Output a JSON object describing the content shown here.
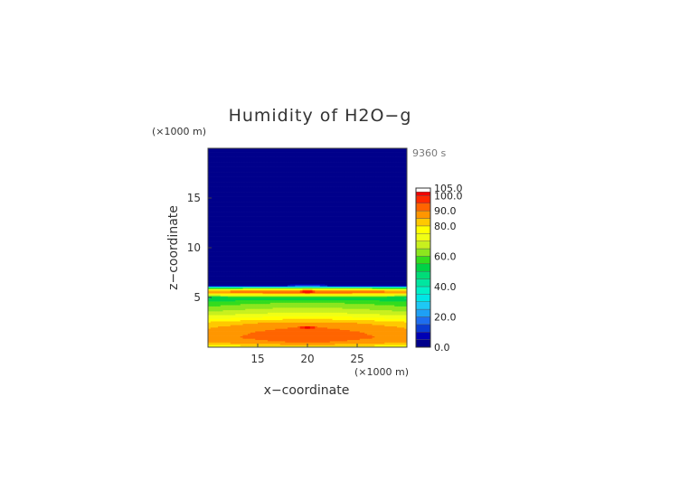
{
  "chart_data": {
    "type": "heatmap",
    "title": "Humidity of H2O−g",
    "xlabel": "x−coordinate",
    "ylabel": "z−coordinate",
    "x_unit": "(×1000 m)",
    "y_unit": "(×1000 m)",
    "time_label": "9360 s",
    "xlim": [
      10,
      30
    ],
    "ylim": [
      0,
      20
    ],
    "x_ticks": [
      "15",
      "20",
      "25"
    ],
    "x_tick_values": [
      15,
      20,
      25
    ],
    "y_ticks": [
      "5",
      "10",
      "15"
    ],
    "y_tick_values": [
      5,
      10,
      15
    ],
    "colorbar": {
      "range": [
        0,
        105
      ],
      "labels": [
        "0.0",
        "20.0",
        "40.0",
        "60.0",
        "80.0",
        "90.0",
        "100.0",
        "105.0"
      ],
      "label_values": [
        0,
        20,
        40,
        60,
        80,
        90,
        100,
        105
      ],
      "levels": [
        {
          "lo": 0,
          "hi": 5,
          "color": "#00008b"
        },
        {
          "lo": 5,
          "hi": 10,
          "color": "#0000b4"
        },
        {
          "lo": 10,
          "hi": 15,
          "color": "#0a3cd2"
        },
        {
          "lo": 15,
          "hi": 20,
          "color": "#1e6ef0"
        },
        {
          "lo": 20,
          "hi": 25,
          "color": "#1ea0f5"
        },
        {
          "lo": 25,
          "hi": 30,
          "color": "#1ec8f5"
        },
        {
          "lo": 30,
          "hi": 35,
          "color": "#00e6e6"
        },
        {
          "lo": 35,
          "hi": 40,
          "color": "#00f0c8"
        },
        {
          "lo": 40,
          "hi": 45,
          "color": "#00e6a0"
        },
        {
          "lo": 45,
          "hi": 50,
          "color": "#00dc78"
        },
        {
          "lo": 50,
          "hi": 55,
          "color": "#00d246"
        },
        {
          "lo": 55,
          "hi": 60,
          "color": "#32dc1e"
        },
        {
          "lo": 60,
          "hi": 65,
          "color": "#8ce61e"
        },
        {
          "lo": 65,
          "hi": 70,
          "color": "#c8f01e"
        },
        {
          "lo": 70,
          "hi": 75,
          "color": "#f0ff14"
        },
        {
          "lo": 75,
          "hi": 80,
          "color": "#ffff00"
        },
        {
          "lo": 80,
          "hi": 85,
          "color": "#ffc800"
        },
        {
          "lo": 85,
          "hi": 90,
          "color": "#ff9600"
        },
        {
          "lo": 90,
          "hi": 95,
          "color": "#ff6400"
        },
        {
          "lo": 95,
          "hi": 100,
          "color": "#ff2800"
        },
        {
          "lo": 100,
          "hi": 102.5,
          "color": "#f00000"
        },
        {
          "lo": 102.5,
          "hi": 105,
          "color": "#ffffff"
        }
      ]
    },
    "field_profile": [
      {
        "z": 0.0,
        "value": 78
      },
      {
        "z": 0.5,
        "value": 90
      },
      {
        "z": 1.0,
        "value": 93
      },
      {
        "z": 1.5,
        "value": 92
      },
      {
        "z": 2.0,
        "value": 90
      },
      {
        "z": 2.5,
        "value": 86
      },
      {
        "z": 3.0,
        "value": 77
      },
      {
        "z": 3.5,
        "value": 70
      },
      {
        "z": 4.0,
        "value": 65
      },
      {
        "z": 4.5,
        "value": 60
      },
      {
        "z": 5.0,
        "value": 52
      },
      {
        "z": 5.3,
        "value": 78
      },
      {
        "z": 5.6,
        "value": 96
      },
      {
        "z": 5.9,
        "value": 70
      },
      {
        "z": 6.2,
        "value": 4
      },
      {
        "z": 20.0,
        "value": 2
      }
    ],
    "peaks": [
      {
        "x": 20,
        "z": 2.0,
        "value": 104
      },
      {
        "x": 20,
        "z": 5.6,
        "value": 103
      }
    ]
  }
}
